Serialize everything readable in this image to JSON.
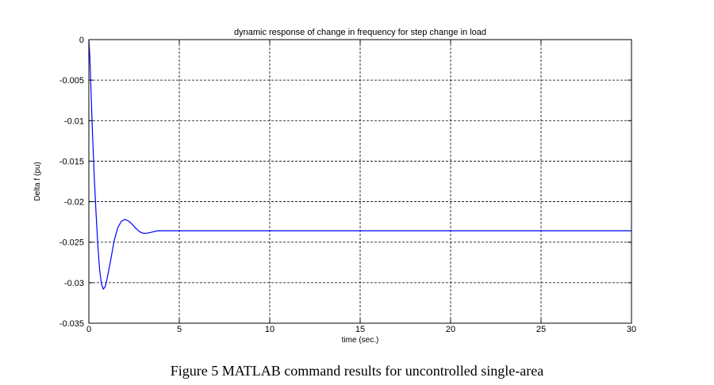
{
  "chart_data": {
    "type": "line",
    "title": "dynamic response of change in frequency for step change in load",
    "xlabel": "time (sec.)",
    "ylabel": "Delta f (pu)",
    "xlim": [
      0,
      30
    ],
    "ylim": [
      -0.035,
      0
    ],
    "xticks": [
      0,
      5,
      10,
      15,
      20,
      25,
      30
    ],
    "yticks": [
      0,
      -0.005,
      -0.01,
      -0.015,
      -0.02,
      -0.025,
      -0.03,
      -0.035
    ],
    "xtick_labels": [
      "0",
      "5",
      "10",
      "15",
      "20",
      "25",
      "30"
    ],
    "ytick_labels": [
      "0",
      "-0.005",
      "-0.01",
      "-0.015",
      "-0.02",
      "-0.025",
      "-0.03",
      "-0.035"
    ],
    "grid": true,
    "line_color": "#0000ff",
    "series": [
      {
        "x": [
          0,
          0.05,
          0.1,
          0.2,
          0.3,
          0.4,
          0.5,
          0.6,
          0.7,
          0.8,
          0.9,
          1.0,
          1.2,
          1.4,
          1.6,
          1.8,
          2.0,
          2.2,
          2.4,
          2.6,
          2.8,
          3.0,
          3.2,
          3.4,
          3.6,
          3.8,
          4.0,
          4.5,
          5.0,
          5.5,
          6.0,
          7.0,
          8.0,
          10.0,
          15.0,
          20.0,
          25.0,
          30.0
        ],
        "y": [
          0,
          -0.002,
          -0.005,
          -0.0115,
          -0.017,
          -0.0215,
          -0.0255,
          -0.0285,
          -0.0302,
          -0.0308,
          -0.0305,
          -0.0296,
          -0.0273,
          -0.0248,
          -0.0232,
          -0.0224,
          -0.0222,
          -0.0224,
          -0.0228,
          -0.0233,
          -0.0237,
          -0.0239,
          -0.0239,
          -0.0238,
          -0.0237,
          -0.0236,
          -0.0236,
          -0.0236,
          -0.0236,
          -0.0236,
          -0.0236,
          -0.0236,
          -0.0236,
          -0.0236,
          -0.0236,
          -0.0236,
          -0.0236,
          -0.0236
        ]
      }
    ]
  },
  "caption": "Figure 5 MATLAB command results for uncontrolled single-area"
}
